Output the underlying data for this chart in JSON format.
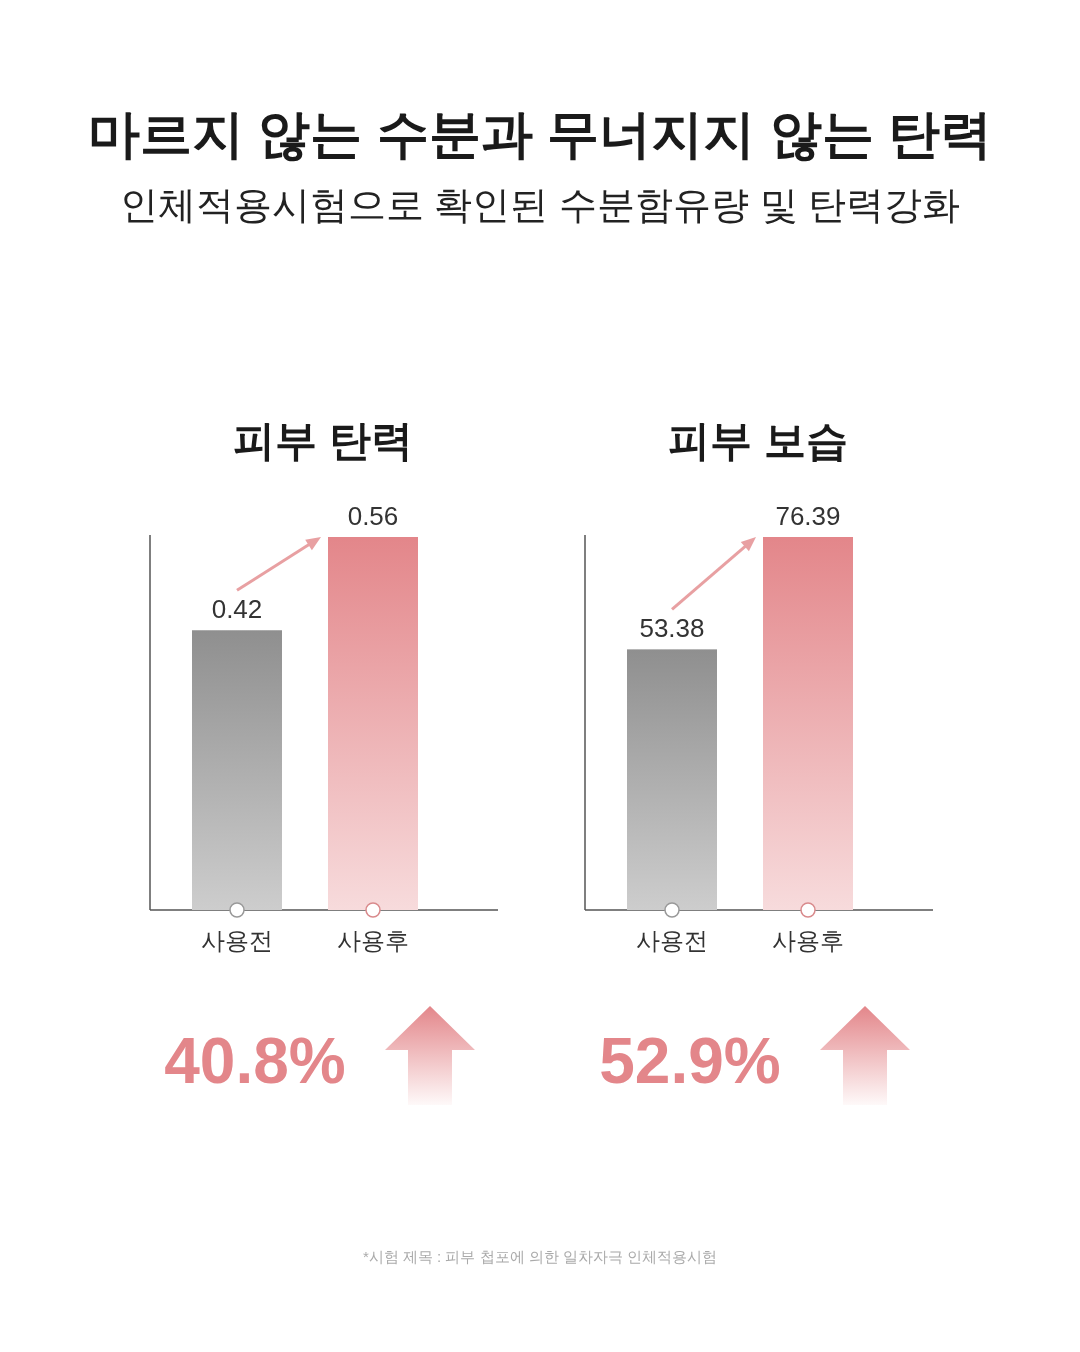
{
  "chart_data": [
    {
      "type": "other",
      "title": "마르지 않는 수분과 무너지지 않는 탄력",
      "subtitle": "인체적용시험으로 확인된 수분함유량 및 탄력강화",
      "annotations": [
        "*시험 제목 : 피부 첩포에 의한 일차자극 인체적용시험"
      ]
    },
    {
      "type": "bar",
      "title": "피부 탄력",
      "categories": [
        "사용전",
        "사용후"
      ],
      "values": [
        0.42,
        0.56
      ],
      "colors": [
        "#8f8f8f",
        "#e3868a"
      ],
      "data_labels": true,
      "annotations": [
        "40.8%"
      ]
    },
    {
      "type": "bar",
      "title": "피부 보습",
      "categories": [
        "사용전",
        "사용후"
      ],
      "values": [
        53.38,
        76.39
      ],
      "colors": [
        "#8f8f8f",
        "#e3868a"
      ],
      "data_labels": true,
      "annotations": [
        "52.9%"
      ]
    }
  ]
}
